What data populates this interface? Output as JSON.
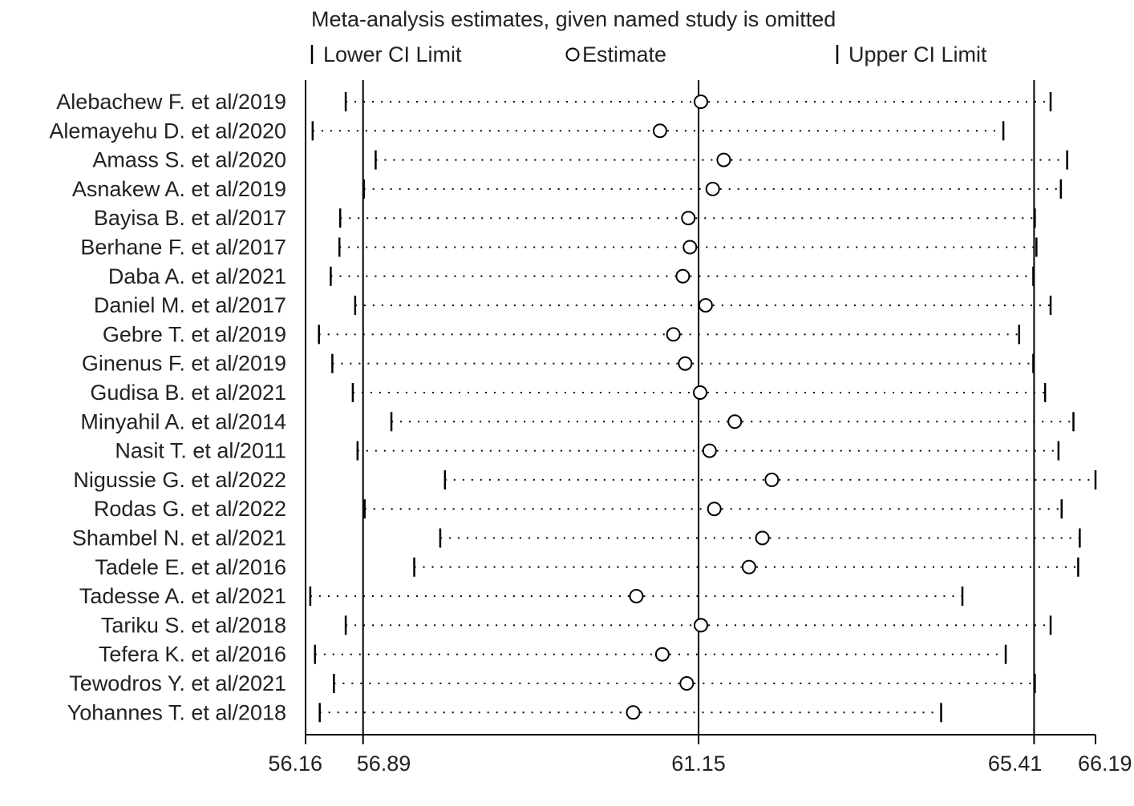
{
  "chart_data": {
    "type": "forest",
    "title": "Meta-analysis estimates, given named study is omitted",
    "legend": {
      "lower": "Lower CI Limit",
      "estimate": "Estimate",
      "upper": "Upper CI Limit",
      "placement": "top"
    },
    "xlim": [
      56.16,
      66.19
    ],
    "x_ticks": [
      {
        "value": 56.16,
        "label": "56.16"
      },
      {
        "value": 56.89,
        "label": "56.89"
      },
      {
        "value": 61.15,
        "label": "61.15"
      },
      {
        "value": 65.41,
        "label": "65.41"
      },
      {
        "value": 66.19,
        "label": "66.19"
      }
    ],
    "reference_lines": [
      56.89,
      61.15,
      65.41
    ],
    "studies": [
      {
        "name": "Alebachew F. et al/2019",
        "lower": 56.67,
        "estimate": 61.18,
        "upper": 65.62
      },
      {
        "name": "Alemayehu D. et al/2020",
        "lower": 56.25,
        "estimate": 60.66,
        "upper": 65.02
      },
      {
        "name": "Amass S. et al/2020",
        "lower": 57.05,
        "estimate": 61.47,
        "upper": 65.83
      },
      {
        "name": "Asnakew A. et al/2019",
        "lower": 56.9,
        "estimate": 61.33,
        "upper": 65.75
      },
      {
        "name": "Bayisa B. et al/2017",
        "lower": 56.6,
        "estimate": 61.02,
        "upper": 65.42
      },
      {
        "name": "Berhane F. et al/2017",
        "lower": 56.59,
        "estimate": 61.04,
        "upper": 65.44
      },
      {
        "name": "Daba A. et al/2021",
        "lower": 56.48,
        "estimate": 60.95,
        "upper": 65.4
      },
      {
        "name": "Daniel M. et al/2017",
        "lower": 56.79,
        "estimate": 61.24,
        "upper": 65.62
      },
      {
        "name": "Gebre T. et al/2019",
        "lower": 56.33,
        "estimate": 60.83,
        "upper": 65.22
      },
      {
        "name": "Ginenus F. et al/2019",
        "lower": 56.5,
        "estimate": 60.98,
        "upper": 65.4
      },
      {
        "name": "Gudisa B. et al/2021",
        "lower": 56.76,
        "estimate": 61.17,
        "upper": 65.55
      },
      {
        "name": "Minyahil A. et al/2014",
        "lower": 57.25,
        "estimate": 61.61,
        "upper": 65.91
      },
      {
        "name": "Nasit T. et al/2011",
        "lower": 56.82,
        "estimate": 61.29,
        "upper": 65.72
      },
      {
        "name": "Nigussie G. et al/2022",
        "lower": 57.93,
        "estimate": 62.08,
        "upper": 66.19
      },
      {
        "name": "Rodas G. et al/2022",
        "lower": 56.91,
        "estimate": 61.35,
        "upper": 65.76
      },
      {
        "name": "Shambel N. et al/2021",
        "lower": 57.87,
        "estimate": 61.96,
        "upper": 65.99
      },
      {
        "name": "Tadele E. et al/2016",
        "lower": 57.54,
        "estimate": 61.79,
        "upper": 65.97
      },
      {
        "name": "Tadesse A. et al/2021",
        "lower": 56.22,
        "estimate": 60.36,
        "upper": 64.5
      },
      {
        "name": "Tariku S. et al/2018",
        "lower": 56.67,
        "estimate": 61.18,
        "upper": 65.62
      },
      {
        "name": "Tefera K. et al/2016",
        "lower": 56.28,
        "estimate": 60.69,
        "upper": 65.05
      },
      {
        "name": "Tewodros Y. et al/2021",
        "lower": 56.52,
        "estimate": 61.0,
        "upper": 65.42
      },
      {
        "name": "Yohannes T. et al/2018",
        "lower": 56.34,
        "estimate": 60.32,
        "upper": 64.23
      }
    ]
  }
}
